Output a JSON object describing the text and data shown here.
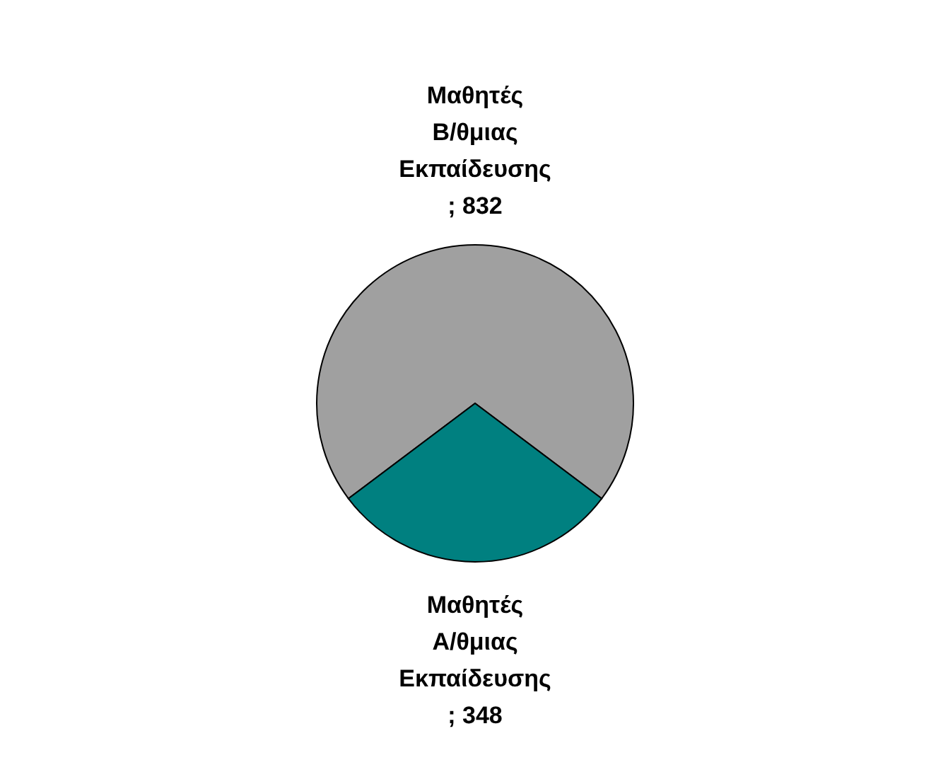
{
  "chart_data": {
    "type": "pie",
    "categories": [
      "Μαθητές Β/θμιας Εκπαίδευσης",
      "Μαθητές Α/θμιας Εκπαίδευσης"
    ],
    "values": [
      832,
      348
    ],
    "colors": [
      "#a0a0a0",
      "#008080"
    ],
    "value_labels": [
      "; 832",
      "; 348"
    ],
    "legend": false
  }
}
